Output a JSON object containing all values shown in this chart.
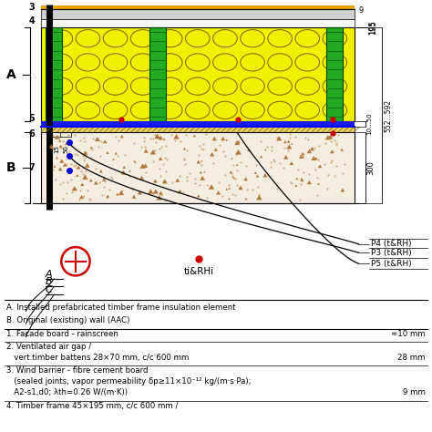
{
  "bg_color": "#ffffff",
  "facade_color": "#d0d0d0",
  "airgap_color": "#ffffff",
  "insul_color": "#f0f000",
  "timber_color": "#22aa22",
  "windbar_color": "#2222cc",
  "aac_color": "#f5ede0",
  "layer_nums": [
    "3",
    "4",
    "5",
    "6",
    "7"
  ],
  "dim_right_labels": [
    "9",
    "195",
    "10...50",
    "300",
    "552...592"
  ],
  "sensor_P_labels": [
    "P4 (t&RH)",
    "P3 (t&RH)",
    "P5 (t&RH)"
  ],
  "legend_A": "A. Installed prefabricated timber frame insulation element",
  "legend_B": "B. Original (existing) wall (AAC)",
  "legend_1_left": "1. Facade board - rainscreen",
  "legend_1_right": "≈10 mm",
  "legend_2a": "2. Ventilated air gap /",
  "legend_2b_left": "   vert.timber battens 28×70 mm, c/c 600 mm",
  "legend_2b_right": "28 mm",
  "legend_3a": "3. Wind barrier - fibre cement board",
  "legend_3b": "   (sealed joints, vapor permeability δp≥11×10⁻¹² kg/(m·s·Pa);",
  "legend_3c_left": "   A2-s1,d0; λth=0.26 W/(m·K))",
  "legend_3c_right": "9 mm",
  "legend_4": "4. Timber frame 45×195 mm, c/c 600 mm /"
}
